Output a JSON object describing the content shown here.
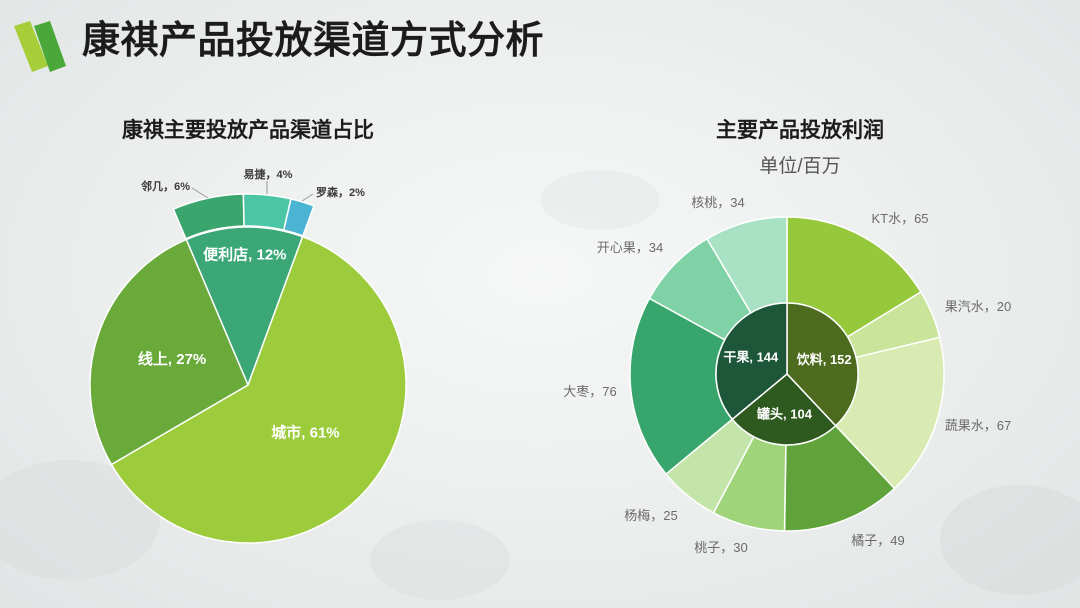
{
  "slide": {
    "title": "康祺产品投放渠道方式分析"
  },
  "logo": {
    "icon": "slanted-green-bars-logo-icon",
    "colors": [
      "#a6ce39",
      "#4aa83a"
    ]
  },
  "colors": {
    "title": "#1c1c1c",
    "label_dark": "#3a3a3a",
    "label_gray": "#6b6b6b",
    "slice_label": "#ffffff",
    "slice_border": "#ffffff"
  },
  "chart_data": [
    {
      "type": "pie",
      "title": "康祺主要投放产品渠道占比",
      "unit": "%",
      "slices": [
        {
          "label": "便利店",
          "value": 12,
          "color": "#3ba777",
          "children": [
            {
              "label": "邻几",
              "value": 6,
              "color": "#3aa66d"
            },
            {
              "label": "易捷",
              "value": 4,
              "color": "#4bc6a4"
            },
            {
              "label": "罗森",
              "value": 2,
              "color": "#4cb4d3"
            }
          ]
        },
        {
          "label": "城市",
          "value": 61,
          "color": "#9ccb3b"
        },
        {
          "label": "线上",
          "value": 27,
          "color": "#69aa3a"
        }
      ]
    },
    {
      "type": "pie",
      "subtype": "sunburst",
      "title": "主要产品投放利润",
      "subtitle": "单位/百万",
      "categories": [
        {
          "label": "饮料",
          "value": 152,
          "color": "#4d6b1f",
          "children": [
            {
              "label": "KT水",
              "value": 65,
              "color": "#96c83c"
            },
            {
              "label": "果汽水",
              "value": 20,
              "color": "#c9e49b"
            },
            {
              "label": "蔬果水",
              "value": 67,
              "color": "#d9ebb2"
            }
          ]
        },
        {
          "label": "罐头",
          "value": 104,
          "color": "#2f5a1f",
          "children": [
            {
              "label": "橘子",
              "value": 49,
              "color": "#5fa33a"
            },
            {
              "label": "桃子",
              "value": 30,
              "color": "#a0d47b"
            },
            {
              "label": "杨梅",
              "value": 25,
              "color": "#c4e5aa"
            }
          ]
        },
        {
          "label": "干果",
          "value": 144,
          "color": "#1e563a",
          "children": [
            {
              "label": "大枣",
              "value": 76,
              "color": "#38a66c"
            },
            {
              "label": "开心果",
              "value": 34,
              "color": "#7ed2a6"
            },
            {
              "label": "核桃",
              "value": 34,
              "color": "#a9e1c5"
            }
          ]
        }
      ]
    }
  ]
}
